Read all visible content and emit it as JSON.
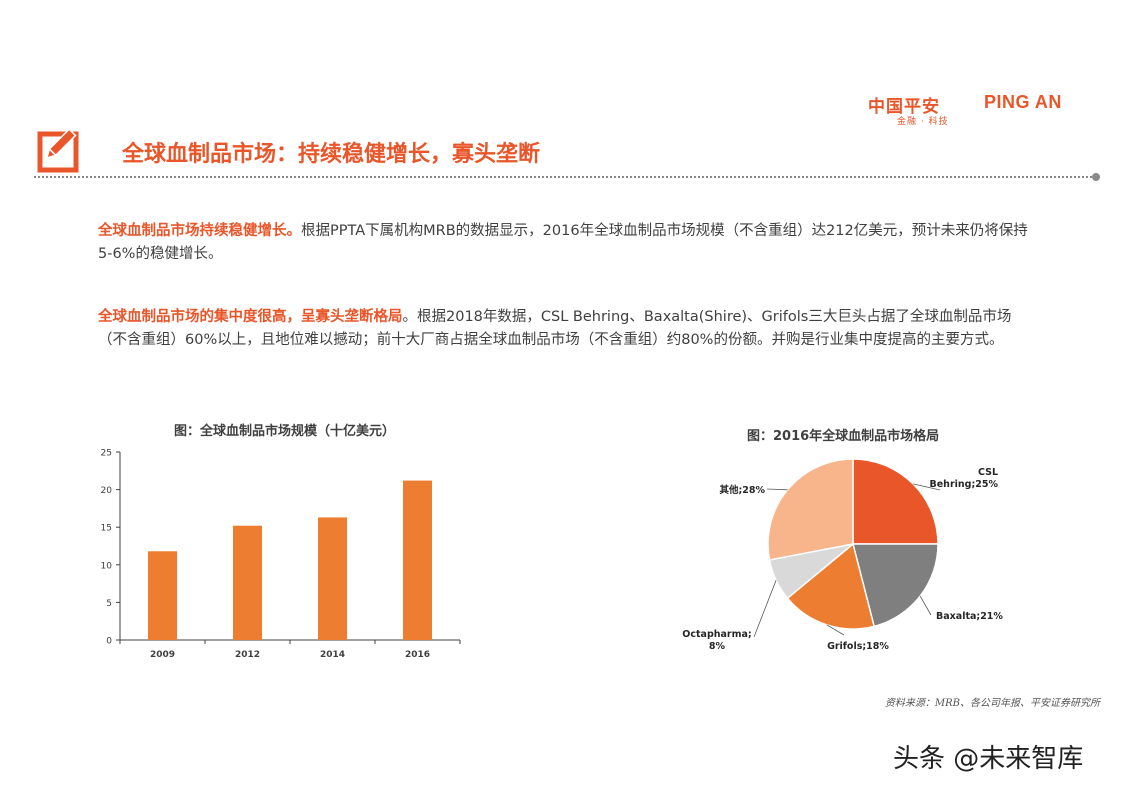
{
  "logo": {
    "cn": "中国平安",
    "en": "PING AN",
    "sub": "金融 · 科技"
  },
  "page_title": "全球血制品市场：持续稳健增长，寡头垄断",
  "paragraphs": [
    {
      "highlight": "全球血制品市场持续稳健增长。",
      "text": "根据PPTA下属机构MRB的数据显示，2016年全球血制品市场规模（不含重组）达212亿美元，预计未来仍将保持5-6%的稳健增长。"
    },
    {
      "highlight": "全球血制品市场的集中度很高，呈寡头垄断格局",
      "text": "。根据2018年数据，CSL Behring、Baxalta(Shire)、Grifols三大巨头占据了全球血制品市场（不含重组）60%以上，且地位难以撼动；前十大厂商占据全球血制品市场（不含重组）约80%的份额。并购是行业集中度提高的主要方式。"
    }
  ],
  "chart_data": [
    {
      "type": "bar",
      "title": "图：全球血制品市场规模（十亿美元）",
      "categories": [
        "2009",
        "2012",
        "2014",
        "2016"
      ],
      "values": [
        11.8,
        15.2,
        16.3,
        21.2
      ],
      "ylim": [
        0,
        25
      ],
      "yticks": [
        0,
        5,
        10,
        15,
        20,
        25
      ],
      "color": "#ed7d31",
      "grid": false
    },
    {
      "type": "pie",
      "title": "图：2016年全球血制品市场格局",
      "slices": [
        {
          "label": "CSL Behring;25%",
          "value": 25,
          "color": "#e8562a"
        },
        {
          "label": "Baxalta;21%",
          "value": 21,
          "color": "#7f7f7f"
        },
        {
          "label": "Grifols;18%",
          "value": 18,
          "color": "#ed7d31"
        },
        {
          "label": "Octapharma;8%",
          "value": 8,
          "color": "#d9d9d9"
        },
        {
          "label": "其他;28%",
          "value": 28,
          "color": "#f8b58c"
        }
      ]
    }
  ],
  "source_note": "资料来源：MRB、各公司年报、平安证券研究所",
  "watermark": "头条 @未来智库"
}
